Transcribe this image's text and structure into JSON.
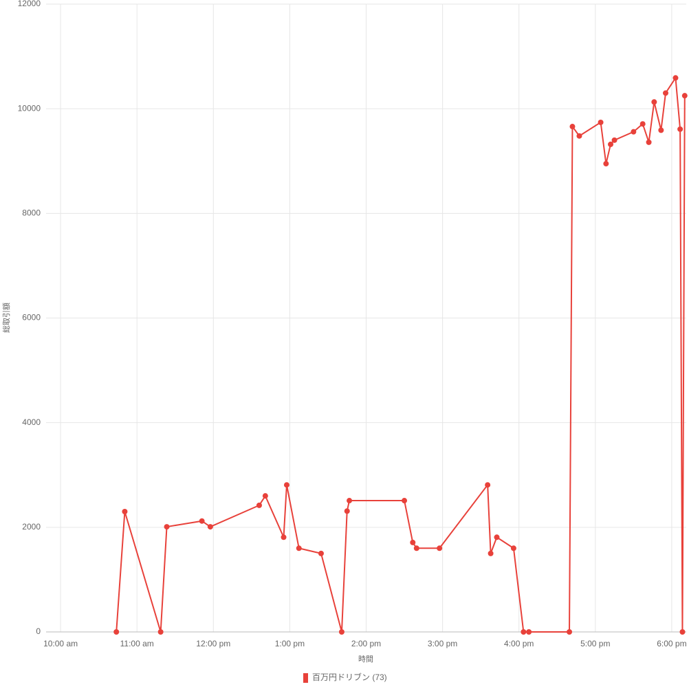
{
  "chart_data": {
    "type": "line",
    "x_label": "時間",
    "y_label": "総取引額",
    "x": [
      10.73,
      10.84,
      11.31,
      11.39,
      11.85,
      11.96,
      12.6,
      12.68,
      12.92,
      12.96,
      13.12,
      13.41,
      13.68,
      13.75,
      13.78,
      14.5,
      14.61,
      14.66,
      14.96,
      15.59,
      15.63,
      15.71,
      15.93,
      16.06,
      16.13,
      16.66,
      16.7,
      16.79,
      17.07,
      17.14,
      17.2,
      17.25,
      17.5,
      17.62,
      17.7,
      17.77,
      17.86,
      17.92,
      18.05,
      18.11,
      18.14,
      18.17
    ],
    "series": [
      {
        "name": "百万円ドリブン (73)",
        "color": "#e8413a",
        "values": [
          0,
          2300,
          0,
          2010,
          2120,
          2010,
          2420,
          2600,
          1810,
          2810,
          1600,
          1500,
          0,
          2310,
          2510,
          2510,
          1710,
          1600,
          1600,
          2810,
          1500,
          1810,
          1600,
          0,
          0,
          0,
          9660,
          9480,
          9740,
          8950,
          9320,
          9400,
          9560,
          9710,
          9360,
          10130,
          9590,
          10300,
          10590,
          9610,
          0,
          10250
        ]
      }
    ],
    "xlim": [
      9.81,
      18.19
    ],
    "xticks": [
      {
        "value": 10,
        "label": "10:00 am"
      },
      {
        "value": 11,
        "label": "11:00 am"
      },
      {
        "value": 12,
        "label": "12:00 pm"
      },
      {
        "value": 13,
        "label": "1:00 pm"
      },
      {
        "value": 14,
        "label": "2:00 pm"
      },
      {
        "value": 15,
        "label": "3:00 pm"
      },
      {
        "value": 16,
        "label": "4:00 pm"
      },
      {
        "value": 17,
        "label": "5:00 pm"
      },
      {
        "value": 18,
        "label": "6:00 pm"
      }
    ],
    "ylim": [
      0,
      12000
    ],
    "yticks": [
      0,
      2000,
      4000,
      6000,
      8000,
      10000,
      12000
    ],
    "grid": true
  }
}
